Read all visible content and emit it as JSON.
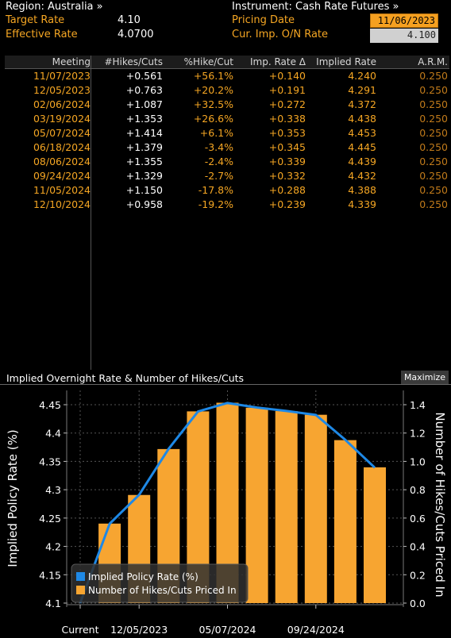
{
  "header": {
    "region_label": "Region: Australia »",
    "instrument_label": "Instrument: Cash Rate Futures »",
    "target_rate_label": "Target Rate",
    "target_rate_value": "4.10",
    "effective_rate_label": "Effective Rate",
    "effective_rate_value": "4.0700",
    "pricing_date_label": "Pricing Date",
    "pricing_date_value": "11/06/2023",
    "cur_imp_label": "Cur. Imp. O/N Rate",
    "cur_imp_value": "4.100"
  },
  "table": {
    "columns": [
      "Meeting",
      "#Hikes/Cuts",
      "%Hike/Cut",
      "Imp. Rate Δ",
      "Implied Rate",
      "A.R.M."
    ],
    "rows": [
      [
        "11/07/2023",
        "+0.561",
        "+56.1%",
        "+0.140",
        "4.240",
        "0.250"
      ],
      [
        "12/05/2023",
        "+0.763",
        "+20.2%",
        "+0.191",
        "4.291",
        "0.250"
      ],
      [
        "02/06/2024",
        "+1.087",
        "+32.5%",
        "+0.272",
        "4.372",
        "0.250"
      ],
      [
        "03/19/2024",
        "+1.353",
        "+26.6%",
        "+0.338",
        "4.438",
        "0.250"
      ],
      [
        "05/07/2024",
        "+1.414",
        "+6.1%",
        "+0.353",
        "4.453",
        "0.250"
      ],
      [
        "06/18/2024",
        "+1.379",
        "-3.4%",
        "+0.345",
        "4.445",
        "0.250"
      ],
      [
        "08/06/2024",
        "+1.355",
        "-2.4%",
        "+0.339",
        "4.439",
        "0.250"
      ],
      [
        "09/24/2024",
        "+1.329",
        "-2.7%",
        "+0.332",
        "4.432",
        "0.250"
      ],
      [
        "11/05/2024",
        "+1.150",
        "-17.8%",
        "+0.288",
        "4.388",
        "0.250"
      ],
      [
        "12/10/2024",
        "+0.958",
        "-19.2%",
        "+0.239",
        "4.339",
        "0.250"
      ]
    ]
  },
  "chart_panel": {
    "title": "Implied Overnight Rate & Number of Hikes/Cuts",
    "maximize_label": "Maximize"
  },
  "colors": {
    "accent_orange": "#f5a623",
    "line_blue": "#1e88e5",
    "bar_orange": "#f7a531"
  },
  "chart_data": {
    "type": "bar",
    "title": "Implied Overnight Rate & Number of Hikes/Cuts",
    "categories": [
      "Current",
      "11/07/2023",
      "12/05/2023",
      "02/06/2024",
      "03/19/2024",
      "05/07/2024",
      "06/18/2024",
      "08/06/2024",
      "09/24/2024",
      "11/05/2024",
      "12/10/2024"
    ],
    "x_tick_labels": [
      "Current",
      "12/05/2023",
      "05/07/2024",
      "09/24/2024"
    ],
    "series": [
      {
        "name": "Implied Policy Rate (%)",
        "type": "line",
        "axis": "left",
        "values": [
          4.1,
          4.24,
          4.291,
          4.372,
          4.438,
          4.453,
          4.445,
          4.439,
          4.432,
          4.388,
          4.339
        ]
      },
      {
        "name": "Number of Hikes/Cuts Priced In",
        "type": "bar",
        "axis": "right",
        "values": [
          0,
          0.561,
          0.763,
          1.087,
          1.353,
          1.414,
          1.379,
          1.355,
          1.329,
          1.15,
          0.958
        ]
      }
    ],
    "ylabel": "Implied Policy Rate (%)",
    "y2label": "Number of Hikes/Cuts Priced In",
    "ylim": [
      4.1,
      4.45
    ],
    "y_ticks": [
      "4.1",
      "4.15",
      "4.2",
      "4.25",
      "4.3",
      "4.35",
      "4.4",
      "4.45"
    ],
    "y2lim": [
      0,
      1.4
    ],
    "y2_ticks": [
      "0.0",
      "0.2",
      "0.4",
      "0.6",
      "0.8",
      "1.0",
      "1.2",
      "1.4"
    ],
    "grid": true,
    "legend_position": "bottom-left"
  }
}
